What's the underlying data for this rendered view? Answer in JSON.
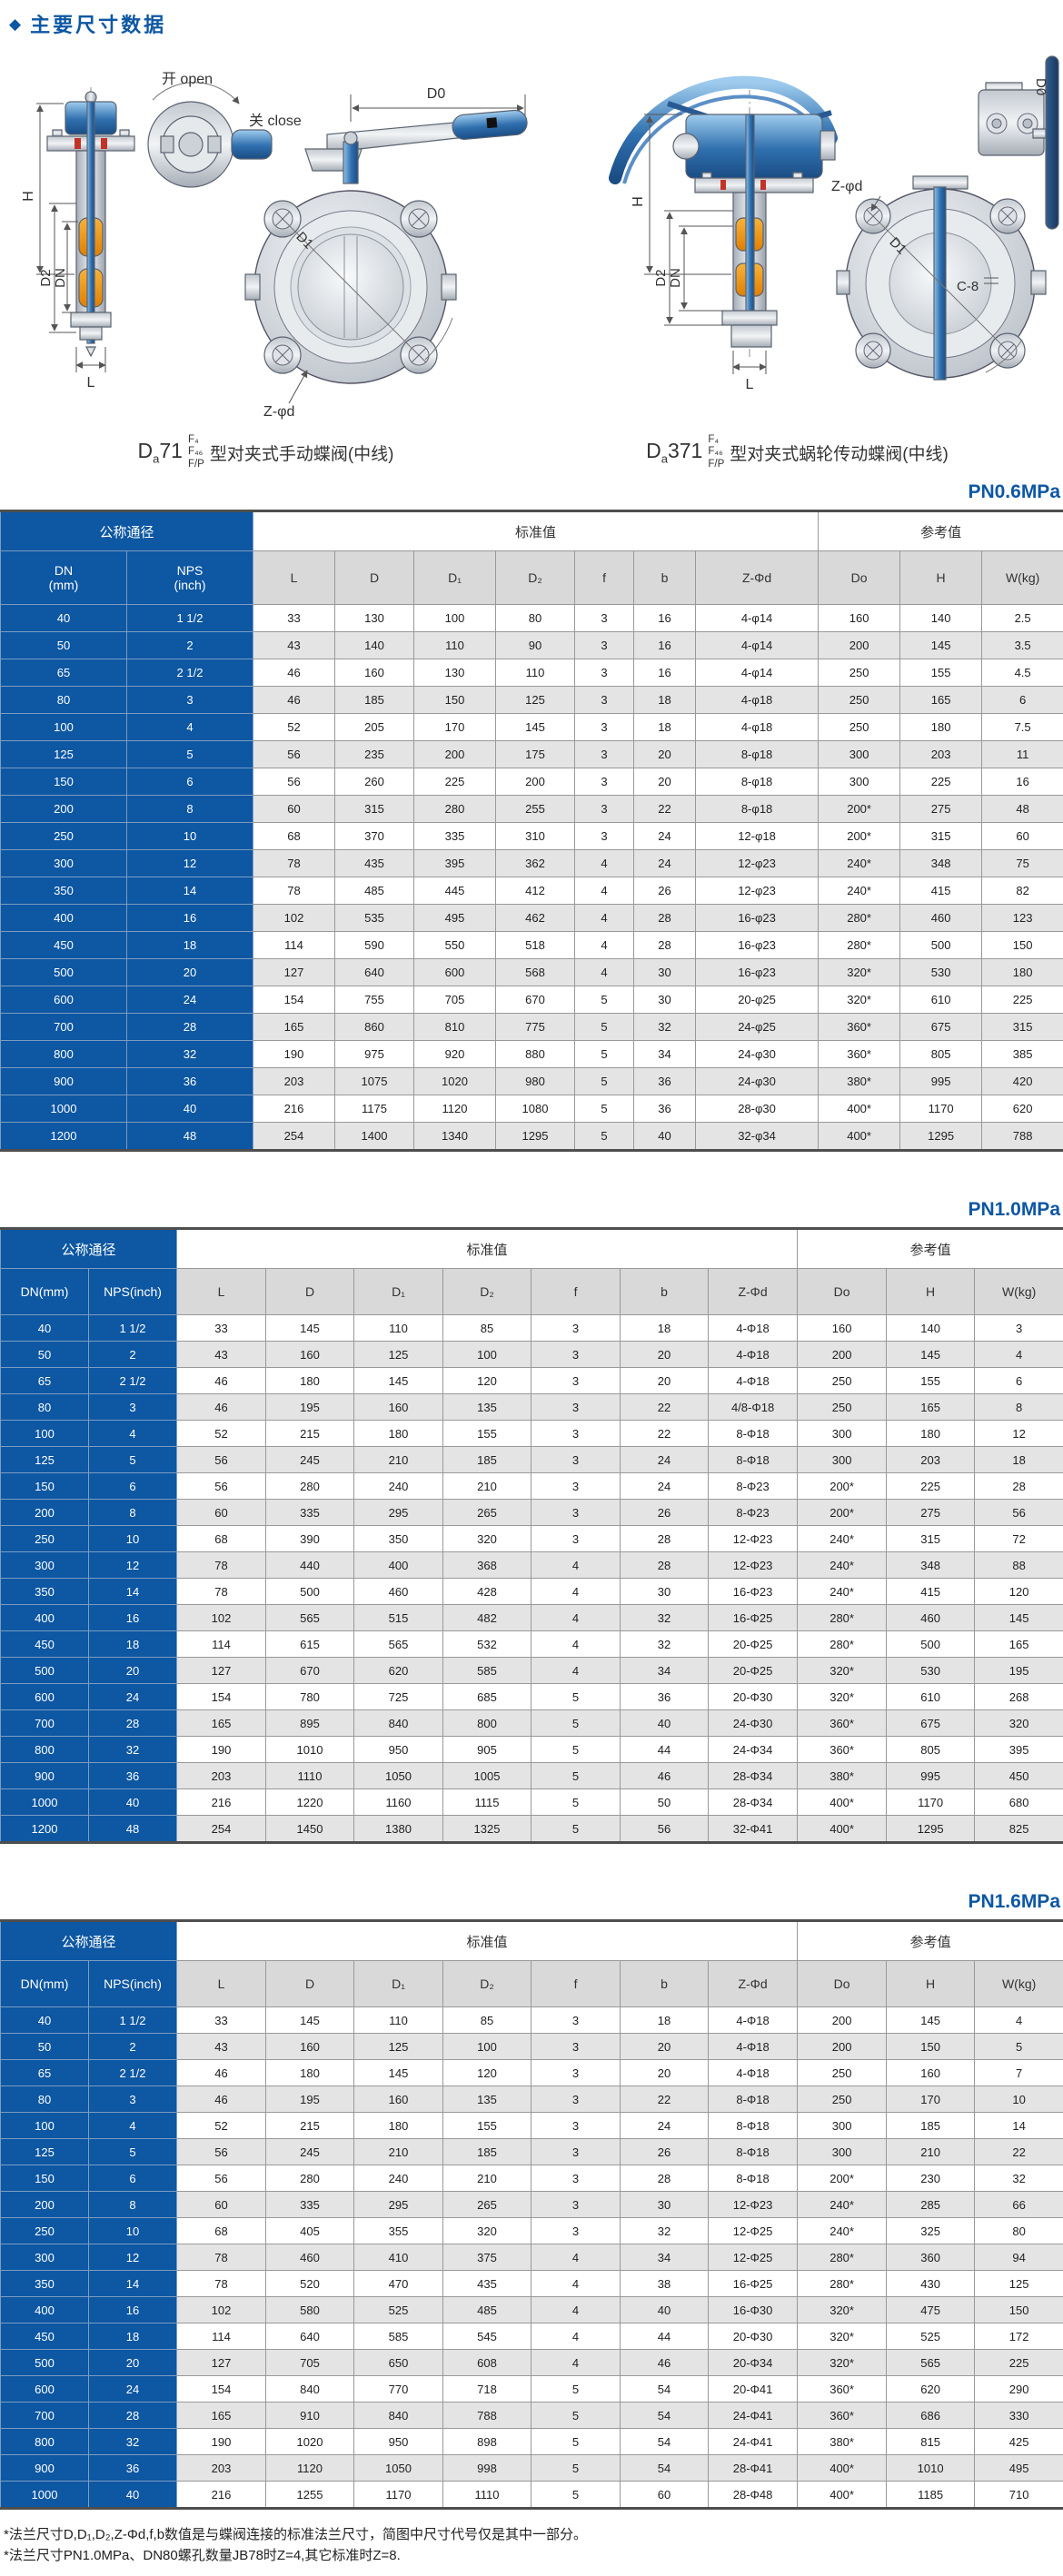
{
  "page": {
    "bullet": "◆",
    "title": "主要尺寸数据"
  },
  "colors": {
    "accent_blue": "#0d57a3",
    "row_alt": "#e4e4e4",
    "header_gray": "#d9d9d9",
    "steel_gray": "#c9ced4",
    "seat_orange": "#f0920f"
  },
  "drawings": {
    "left": {
      "labels": {
        "open": "开 open",
        "close": "关 close",
        "d0": "D0",
        "h": "H",
        "d2": "D2",
        "dn": "DN",
        "l": "L",
        "d1": "D1",
        "zd": "Z-φd"
      },
      "caption": {
        "model_main": "D",
        "model_sub": "a",
        "model_num": "71",
        "stack": [
          "F₄",
          "F₄₆",
          "F/P"
        ],
        "text": "型对夹式手动蝶阀(中线)"
      }
    },
    "right": {
      "labels": {
        "h": "H",
        "d2": "D2",
        "dn": "DN",
        "l": "L",
        "zd": "Z-φd",
        "d1": "D1",
        "c8": "C-8",
        "d0": "D0"
      },
      "caption": {
        "model_main": "D",
        "model_sub": "a",
        "model_num": "371",
        "stack": [
          "F₄",
          "F₄₆",
          "F/P"
        ],
        "text": "型对夹式蜗轮传动蝶阀(中线)"
      }
    }
  },
  "tables": [
    {
      "pressure": "PN0.6MPa",
      "group_headers": {
        "nominal": "公称通径",
        "standard": "标准值",
        "reference": "参考值"
      },
      "dn_label": "DN\n(mm)",
      "nps_label": "NPS\n(inch)",
      "sub_headers": [
        "L",
        "D",
        "D₁",
        "D₂",
        "f",
        "b",
        "Z-Φd",
        "Do",
        "H",
        "W(kg)"
      ],
      "rows": [
        [
          "40",
          "1 1/2",
          "33",
          "130",
          "100",
          "80",
          "3",
          "16",
          "4-φ14",
          "160",
          "140",
          "2.5"
        ],
        [
          "50",
          "2",
          "43",
          "140",
          "110",
          "90",
          "3",
          "16",
          "4-φ14",
          "200",
          "145",
          "3.5"
        ],
        [
          "65",
          "2 1/2",
          "46",
          "160",
          "130",
          "110",
          "3",
          "16",
          "4-φ14",
          "250",
          "155",
          "4.5"
        ],
        [
          "80",
          "3",
          "46",
          "185",
          "150",
          "125",
          "3",
          "18",
          "4-φ18",
          "250",
          "165",
          "6"
        ],
        [
          "100",
          "4",
          "52",
          "205",
          "170",
          "145",
          "3",
          "18",
          "4-φ18",
          "250",
          "180",
          "7.5"
        ],
        [
          "125",
          "5",
          "56",
          "235",
          "200",
          "175",
          "3",
          "20",
          "8-φ18",
          "300",
          "203",
          "11"
        ],
        [
          "150",
          "6",
          "56",
          "260",
          "225",
          "200",
          "3",
          "20",
          "8-φ18",
          "300",
          "225",
          "16"
        ],
        [
          "200",
          "8",
          "60",
          "315",
          "280",
          "255",
          "3",
          "22",
          "8-φ18",
          "200*",
          "275",
          "48"
        ],
        [
          "250",
          "10",
          "68",
          "370",
          "335",
          "310",
          "3",
          "24",
          "12-φ18",
          "200*",
          "315",
          "60"
        ],
        [
          "300",
          "12",
          "78",
          "435",
          "395",
          "362",
          "4",
          "24",
          "12-φ23",
          "240*",
          "348",
          "75"
        ],
        [
          "350",
          "14",
          "78",
          "485",
          "445",
          "412",
          "4",
          "26",
          "12-φ23",
          "240*",
          "415",
          "82"
        ],
        [
          "400",
          "16",
          "102",
          "535",
          "495",
          "462",
          "4",
          "28",
          "16-φ23",
          "280*",
          "460",
          "123"
        ],
        [
          "450",
          "18",
          "114",
          "590",
          "550",
          "518",
          "4",
          "28",
          "16-φ23",
          "280*",
          "500",
          "150"
        ],
        [
          "500",
          "20",
          "127",
          "640",
          "600",
          "568",
          "4",
          "30",
          "16-φ23",
          "320*",
          "530",
          "180"
        ],
        [
          "600",
          "24",
          "154",
          "755",
          "705",
          "670",
          "5",
          "30",
          "20-φ25",
          "320*",
          "610",
          "225"
        ],
        [
          "700",
          "28",
          "165",
          "860",
          "810",
          "775",
          "5",
          "32",
          "24-φ25",
          "360*",
          "675",
          "315"
        ],
        [
          "800",
          "32",
          "190",
          "975",
          "920",
          "880",
          "5",
          "34",
          "24-φ30",
          "360*",
          "805",
          "385"
        ],
        [
          "900",
          "36",
          "203",
          "1075",
          "1020",
          "980",
          "5",
          "36",
          "24-φ30",
          "380*",
          "995",
          "420"
        ],
        [
          "1000",
          "40",
          "216",
          "1175",
          "1120",
          "1080",
          "5",
          "36",
          "28-φ30",
          "400*",
          "1170",
          "620"
        ],
        [
          "1200",
          "48",
          "254",
          "1400",
          "1340",
          "1295",
          "5",
          "40",
          "32-φ34",
          "400*",
          "1295",
          "788"
        ]
      ]
    },
    {
      "pressure": "PN1.0MPa",
      "group_headers": {
        "nominal": "公称通径",
        "standard": "标准值",
        "reference": "参考值"
      },
      "dn_label": "DN(mm)",
      "nps_label": "NPS(inch)",
      "sub_headers": [
        "L",
        "D",
        "D₁",
        "D₂",
        "f",
        "b",
        "Z-Φd",
        "Do",
        "H",
        "W(kg)"
      ],
      "rows": [
        [
          "40",
          "1 1/2",
          "33",
          "145",
          "110",
          "85",
          "3",
          "18",
          "4-Φ18",
          "160",
          "140",
          "3"
        ],
        [
          "50",
          "2",
          "43",
          "160",
          "125",
          "100",
          "3",
          "20",
          "4-Φ18",
          "200",
          "145",
          "4"
        ],
        [
          "65",
          "2 1/2",
          "46",
          "180",
          "145",
          "120",
          "3",
          "20",
          "4-Φ18",
          "250",
          "155",
          "6"
        ],
        [
          "80",
          "3",
          "46",
          "195",
          "160",
          "135",
          "3",
          "22",
          "4/8-Φ18",
          "250",
          "165",
          "8"
        ],
        [
          "100",
          "4",
          "52",
          "215",
          "180",
          "155",
          "3",
          "22",
          "8-Φ18",
          "300",
          "180",
          "12"
        ],
        [
          "125",
          "5",
          "56",
          "245",
          "210",
          "185",
          "3",
          "24",
          "8-Φ18",
          "300",
          "203",
          "18"
        ],
        [
          "150",
          "6",
          "56",
          "280",
          "240",
          "210",
          "3",
          "24",
          "8-Φ23",
          "200*",
          "225",
          "28"
        ],
        [
          "200",
          "8",
          "60",
          "335",
          "295",
          "265",
          "3",
          "26",
          "8-Φ23",
          "200*",
          "275",
          "56"
        ],
        [
          "250",
          "10",
          "68",
          "390",
          "350",
          "320",
          "3",
          "28",
          "12-Φ23",
          "240*",
          "315",
          "72"
        ],
        [
          "300",
          "12",
          "78",
          "440",
          "400",
          "368",
          "4",
          "28",
          "12-Φ23",
          "240*",
          "348",
          "88"
        ],
        [
          "350",
          "14",
          "78",
          "500",
          "460",
          "428",
          "4",
          "30",
          "16-Φ23",
          "240*",
          "415",
          "120"
        ],
        [
          "400",
          "16",
          "102",
          "565",
          "515",
          "482",
          "4",
          "32",
          "16-Φ25",
          "280*",
          "460",
          "145"
        ],
        [
          "450",
          "18",
          "114",
          "615",
          "565",
          "532",
          "4",
          "32",
          "20-Φ25",
          "280*",
          "500",
          "165"
        ],
        [
          "500",
          "20",
          "127",
          "670",
          "620",
          "585",
          "4",
          "34",
          "20-Φ25",
          "320*",
          "530",
          "195"
        ],
        [
          "600",
          "24",
          "154",
          "780",
          "725",
          "685",
          "5",
          "36",
          "20-Φ30",
          "320*",
          "610",
          "268"
        ],
        [
          "700",
          "28",
          "165",
          "895",
          "840",
          "800",
          "5",
          "40",
          "24-Φ30",
          "360*",
          "675",
          "320"
        ],
        [
          "800",
          "32",
          "190",
          "1010",
          "950",
          "905",
          "5",
          "44",
          "24-Φ34",
          "360*",
          "805",
          "395"
        ],
        [
          "900",
          "36",
          "203",
          "1110",
          "1050",
          "1005",
          "5",
          "46",
          "28-Φ34",
          "380*",
          "995",
          "450"
        ],
        [
          "1000",
          "40",
          "216",
          "1220",
          "1160",
          "1115",
          "5",
          "50",
          "28-Φ34",
          "400*",
          "1170",
          "680"
        ],
        [
          "1200",
          "48",
          "254",
          "1450",
          "1380",
          "1325",
          "5",
          "56",
          "32-Φ41",
          "400*",
          "1295",
          "825"
        ]
      ]
    },
    {
      "pressure": "PN1.6MPa",
      "group_headers": {
        "nominal": "公称通径",
        "standard": "标准值",
        "reference": "参考值"
      },
      "dn_label": "DN(mm)",
      "nps_label": "NPS(inch)",
      "sub_headers": [
        "L",
        "D",
        "D₁",
        "D₂",
        "f",
        "b",
        "Z-Φd",
        "Do",
        "H",
        "W(kg)"
      ],
      "rows": [
        [
          "40",
          "1 1/2",
          "33",
          "145",
          "110",
          "85",
          "3",
          "18",
          "4-Φ18",
          "200",
          "145",
          "4"
        ],
        [
          "50",
          "2",
          "43",
          "160",
          "125",
          "100",
          "3",
          "20",
          "4-Φ18",
          "200",
          "150",
          "5"
        ],
        [
          "65",
          "2 1/2",
          "46",
          "180",
          "145",
          "120",
          "3",
          "20",
          "4-Φ18",
          "250",
          "160",
          "7"
        ],
        [
          "80",
          "3",
          "46",
          "195",
          "160",
          "135",
          "3",
          "22",
          "8-Φ18",
          "250",
          "170",
          "10"
        ],
        [
          "100",
          "4",
          "52",
          "215",
          "180",
          "155",
          "3",
          "24",
          "8-Φ18",
          "300",
          "185",
          "14"
        ],
        [
          "125",
          "5",
          "56",
          "245",
          "210",
          "185",
          "3",
          "26",
          "8-Φ18",
          "300",
          "210",
          "22"
        ],
        [
          "150",
          "6",
          "56",
          "280",
          "240",
          "210",
          "3",
          "28",
          "8-Φ18",
          "200*",
          "230",
          "32"
        ],
        [
          "200",
          "8",
          "60",
          "335",
          "295",
          "265",
          "3",
          "30",
          "12-Φ23",
          "240*",
          "285",
          "66"
        ],
        [
          "250",
          "10",
          "68",
          "405",
          "355",
          "320",
          "3",
          "32",
          "12-Φ25",
          "240*",
          "325",
          "80"
        ],
        [
          "300",
          "12",
          "78",
          "460",
          "410",
          "375",
          "4",
          "34",
          "12-Φ25",
          "280*",
          "360",
          "94"
        ],
        [
          "350",
          "14",
          "78",
          "520",
          "470",
          "435",
          "4",
          "38",
          "16-Φ25",
          "280*",
          "430",
          "125"
        ],
        [
          "400",
          "16",
          "102",
          "580",
          "525",
          "485",
          "4",
          "40",
          "16-Φ30",
          "320*",
          "475",
          "150"
        ],
        [
          "450",
          "18",
          "114",
          "640",
          "585",
          "545",
          "4",
          "44",
          "20-Φ30",
          "320*",
          "525",
          "172"
        ],
        [
          "500",
          "20",
          "127",
          "705",
          "650",
          "608",
          "4",
          "46",
          "20-Φ34",
          "320*",
          "565",
          "225"
        ],
        [
          "600",
          "24",
          "154",
          "840",
          "770",
          "718",
          "5",
          "54",
          "20-Φ41",
          "360*",
          "620",
          "290"
        ],
        [
          "700",
          "28",
          "165",
          "910",
          "840",
          "788",
          "5",
          "54",
          "24-Φ41",
          "360*",
          "686",
          "330"
        ],
        [
          "800",
          "32",
          "190",
          "1020",
          "950",
          "898",
          "5",
          "54",
          "24-Φ41",
          "380*",
          "815",
          "425"
        ],
        [
          "900",
          "36",
          "203",
          "1120",
          "1050",
          "998",
          "5",
          "54",
          "28-Φ41",
          "400*",
          "1010",
          "495"
        ],
        [
          "1000",
          "40",
          "216",
          "1255",
          "1170",
          "1110",
          "5",
          "60",
          "28-Φ48",
          "400*",
          "1185",
          "710"
        ]
      ]
    }
  ],
  "notes": [
    "*法兰尺寸D,D₁,D₂,Z-Φd,f,b数值是与蝶阀连接的标准法兰尺寸，简图中尺寸代号仅是其中一部分。",
    "*法兰尺寸PN1.0MPa、DN80螺孔数量JB78时Z=4,其它标准时Z=8."
  ]
}
